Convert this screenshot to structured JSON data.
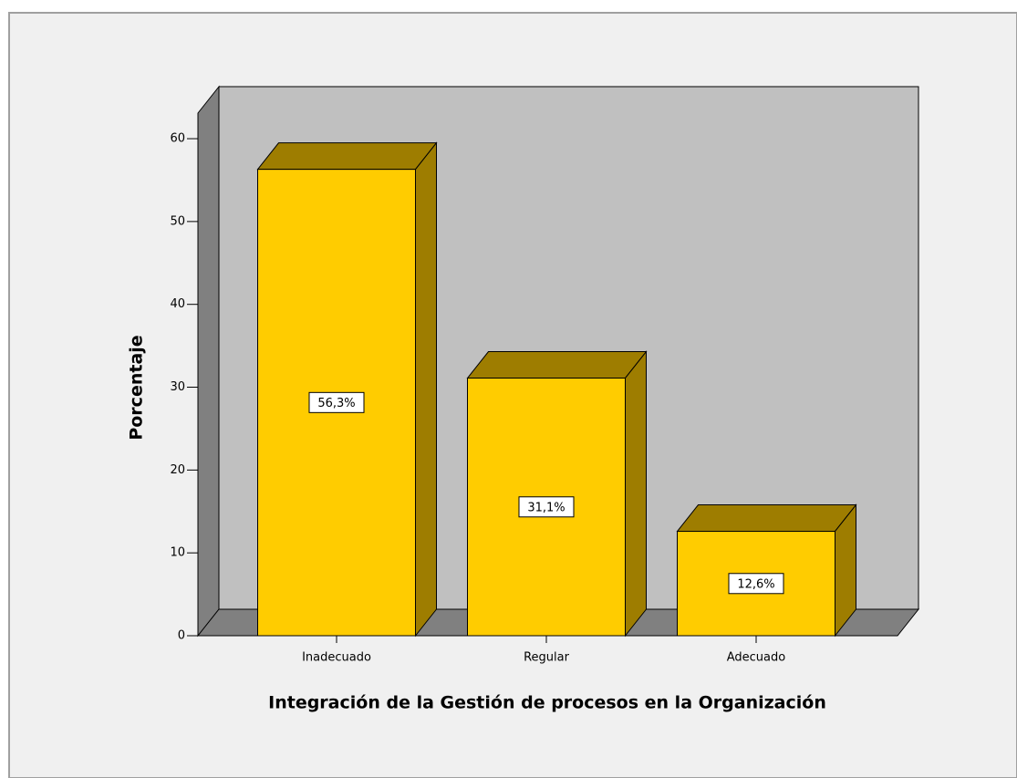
{
  "chart_data": {
    "type": "bar3d",
    "xlabel": "Integración de la Gestión de procesos en la Organización",
    "ylabel": "Porcentaje",
    "categories": [
      "Inadecuado",
      "Regular",
      "Adecuado"
    ],
    "values": [
      56.3,
      31.1,
      12.6
    ],
    "value_labels": [
      "56,3%",
      "31,1%",
      "12,6%"
    ],
    "color": "#ffcc00",
    "ylim": [
      0,
      63
    ],
    "yticks": [
      0,
      10,
      20,
      30,
      40,
      50,
      60
    ]
  }
}
